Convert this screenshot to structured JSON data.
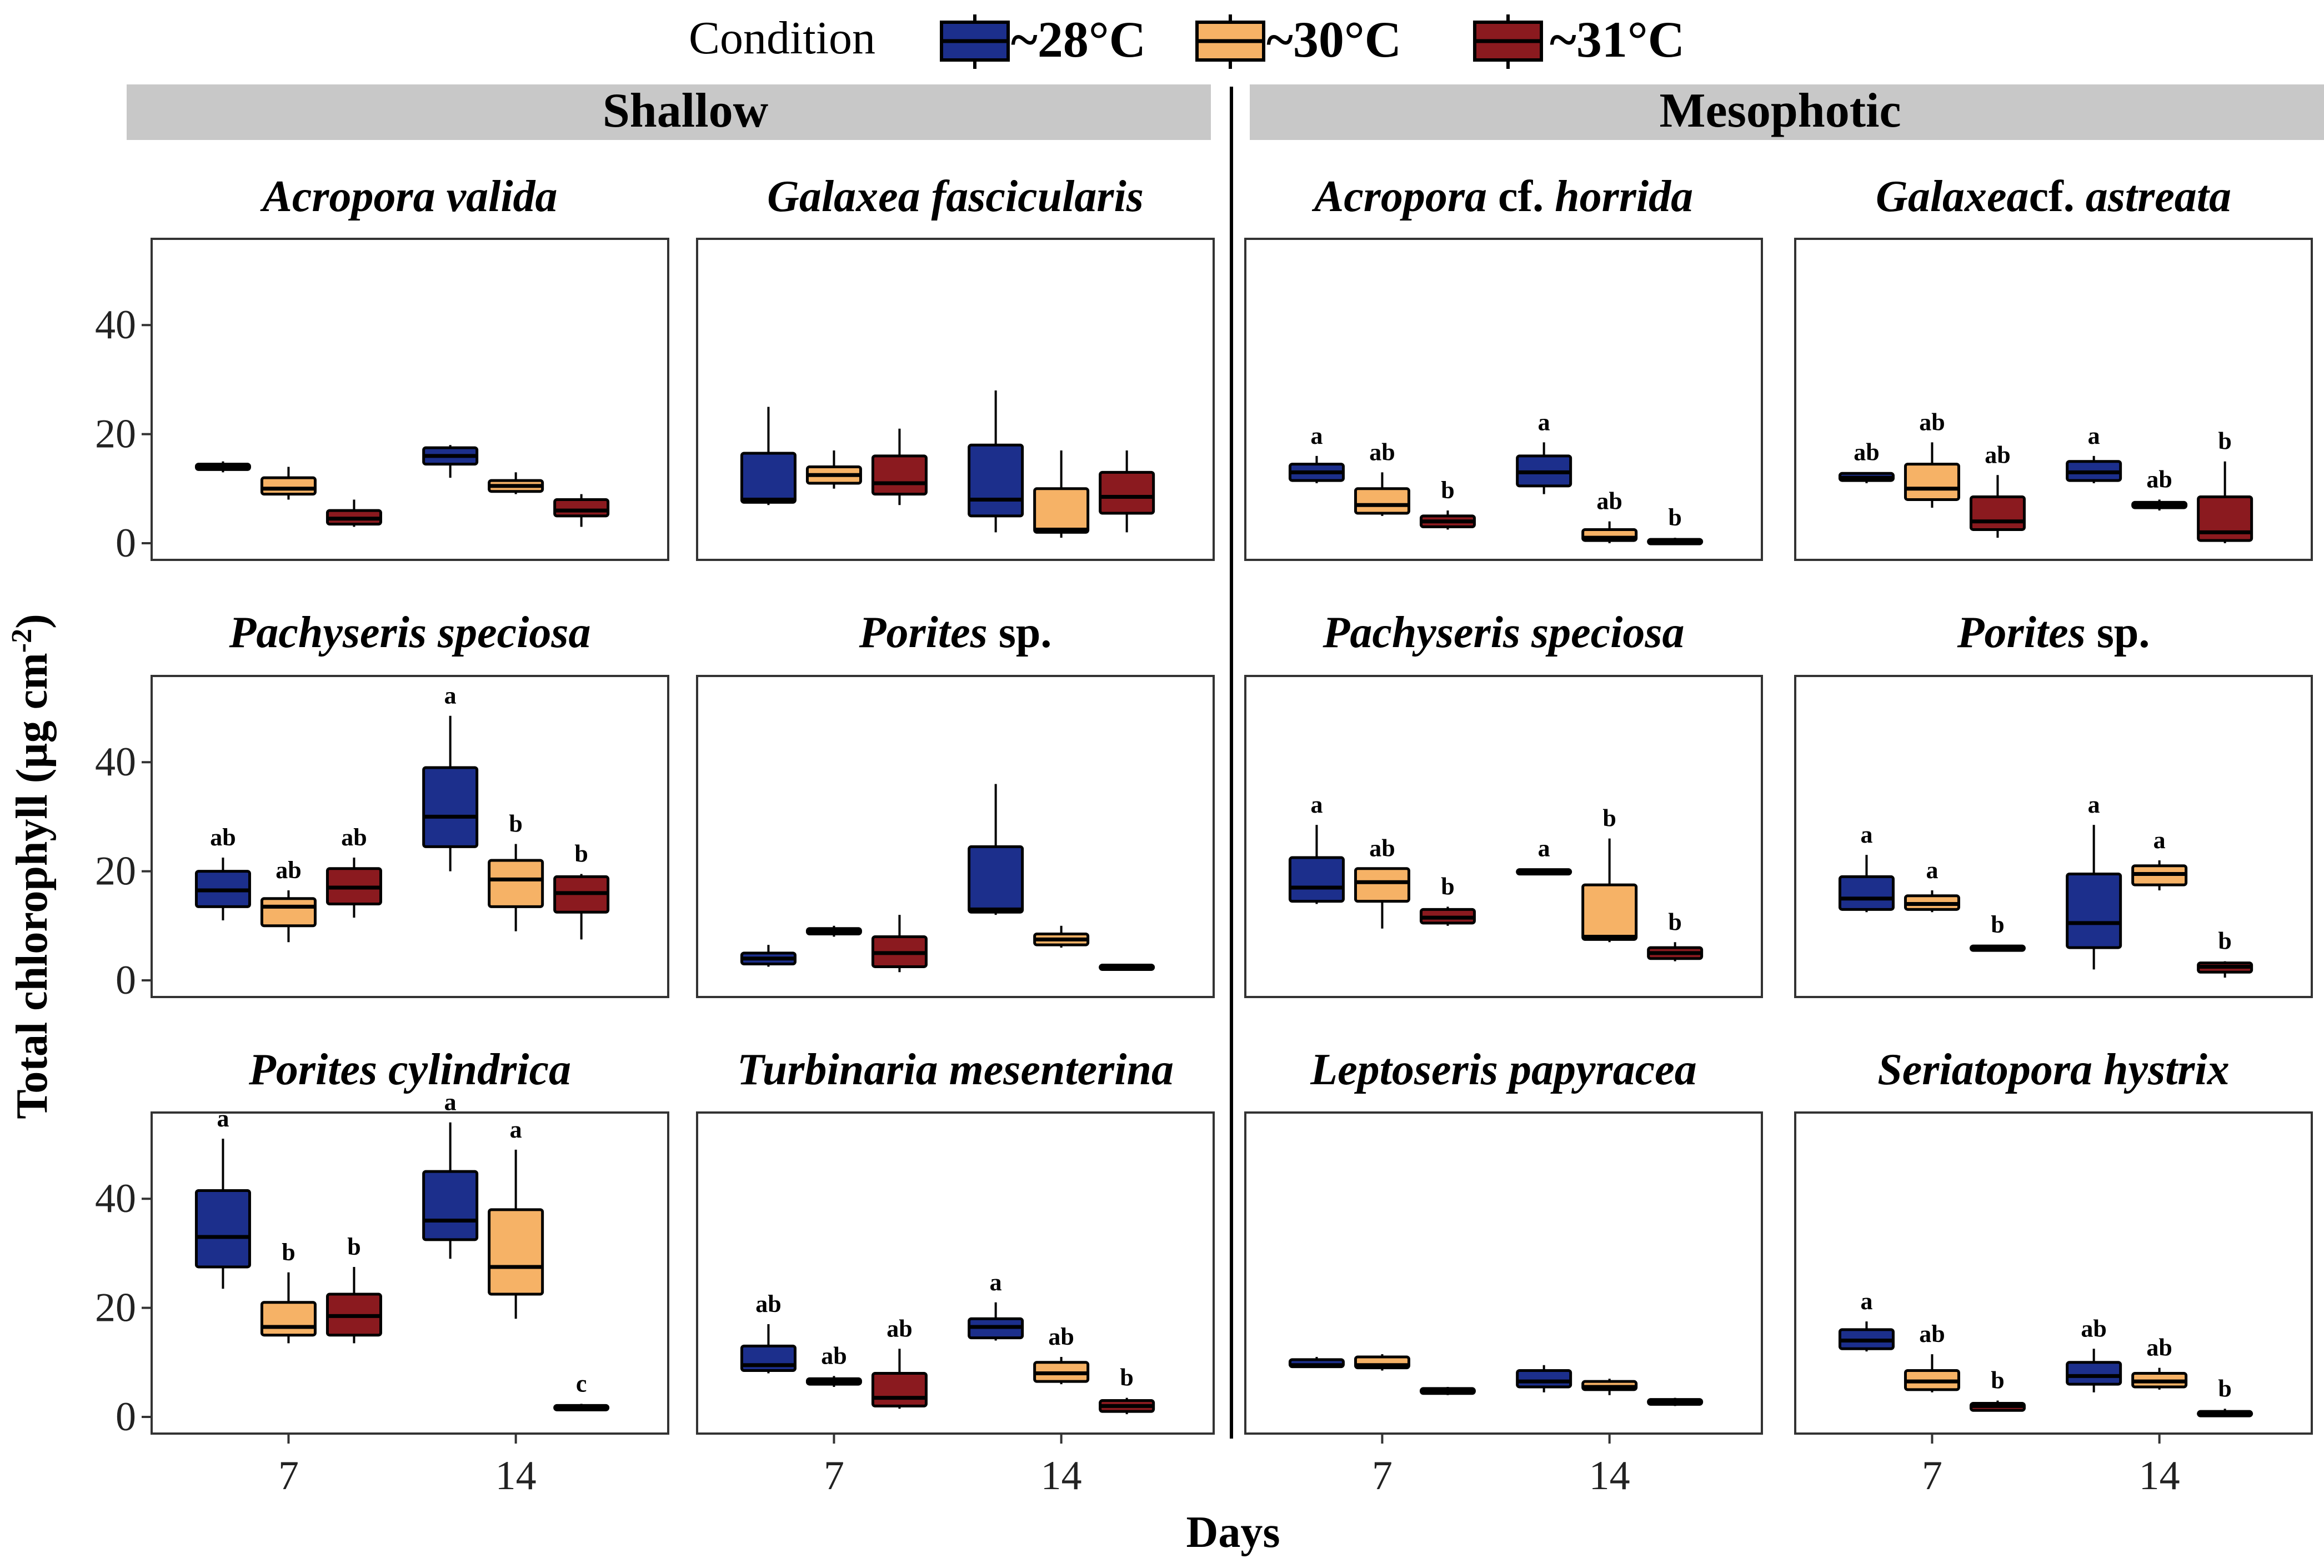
{
  "legend": {
    "title": "Condition",
    "entries": [
      {
        "key": "c28",
        "label": "~28°C",
        "color": "#1c2f8c"
      },
      {
        "key": "c30",
        "label": "~30°C",
        "color": "#f6b266"
      },
      {
        "key": "c31",
        "label": "~31°C",
        "color": "#8b1a1f"
      }
    ]
  },
  "groups": [
    {
      "label": "Shallow"
    },
    {
      "label": "Mesophotic"
    }
  ],
  "axes": {
    "ylabel": "Total chlorophyll (µg cm",
    "ylabel_sup": "-2",
    "ylabel_close": ")",
    "xlabel": "Days",
    "y_ticks": [
      "0",
      "20",
      "40"
    ],
    "x_ticks": [
      "7",
      "14"
    ]
  },
  "chart_data": {
    "type": "box",
    "x_categories": [
      "7",
      "14"
    ],
    "y_range": [
      0,
      52
    ],
    "series_order": [
      "~28°C",
      "~30°C",
      "~31°C"
    ],
    "panels": [
      {
        "group": "Shallow",
        "row": 0,
        "col": 0,
        "title": [
          {
            "t": "Acropora valida",
            "i": true
          }
        ],
        "days": [
          [
            {
              "min": 13,
              "q1": 13.5,
              "med": 14,
              "q3": 14.5,
              "max": 15,
              "sig": ""
            },
            {
              "min": 8,
              "q1": 9,
              "med": 10,
              "q3": 12,
              "max": 14,
              "sig": ""
            },
            {
              "min": 3,
              "q1": 3.5,
              "med": 4.5,
              "q3": 6,
              "max": 8,
              "sig": ""
            }
          ],
          [
            {
              "min": 12,
              "q1": 14.5,
              "med": 16,
              "q3": 17.5,
              "max": 18,
              "sig": ""
            },
            {
              "min": 9,
              "q1": 9.5,
              "med": 10.5,
              "q3": 11.5,
              "max": 13,
              "sig": ""
            },
            {
              "min": 3,
              "q1": 5,
              "med": 6,
              "q3": 8,
              "max": 9,
              "sig": ""
            }
          ]
        ]
      },
      {
        "group": "Shallow",
        "row": 0,
        "col": 1,
        "title": [
          {
            "t": "Galaxea fascicularis",
            "i": true
          }
        ],
        "days": [
          [
            {
              "min": 7,
              "q1": 7.5,
              "med": 8,
              "q3": 16.5,
              "max": 25,
              "sig": ""
            },
            {
              "min": 10,
              "q1": 11,
              "med": 12.5,
              "q3": 14,
              "max": 17,
              "sig": ""
            },
            {
              "min": 7,
              "q1": 9,
              "med": 11,
              "q3": 16,
              "max": 21,
              "sig": ""
            }
          ],
          [
            {
              "min": 2,
              "q1": 5,
              "med": 8,
              "q3": 18,
              "max": 28,
              "sig": ""
            },
            {
              "min": 1,
              "q1": 2,
              "med": 2.5,
              "q3": 10,
              "max": 17,
              "sig": ""
            },
            {
              "min": 2,
              "q1": 5.5,
              "med": 8.5,
              "q3": 13,
              "max": 17,
              "sig": ""
            }
          ]
        ]
      },
      {
        "group": "Mesophotic",
        "row": 0,
        "col": 2,
        "title": [
          {
            "t": "Acropora",
            "i": true
          },
          {
            "t": " cf. ",
            "i": false
          },
          {
            "t": "horrida",
            "i": true
          }
        ],
        "days": [
          [
            {
              "min": 11,
              "q1": 11.5,
              "med": 13,
              "q3": 14.5,
              "max": 16,
              "sig": "a"
            },
            {
              "min": 5,
              "q1": 5.5,
              "med": 7,
              "q3": 10,
              "max": 13,
              "sig": "ab"
            },
            {
              "min": 2.5,
              "q1": 3,
              "med": 4,
              "q3": 5,
              "max": 6,
              "sig": "b"
            }
          ],
          [
            {
              "min": 9,
              "q1": 10.5,
              "med": 13,
              "q3": 16,
              "max": 18.5,
              "sig": "a"
            },
            {
              "min": 0,
              "q1": 0.5,
              "med": 1,
              "q3": 2.5,
              "max": 4,
              "sig": "ab"
            },
            {
              "min": 0,
              "q1": 0.2,
              "med": 0.4,
              "q3": 0.7,
              "max": 1,
              "sig": "b"
            }
          ]
        ]
      },
      {
        "group": "Mesophotic",
        "row": 0,
        "col": 3,
        "title": [
          {
            "t": "Galaxea",
            "i": true
          },
          {
            "t": "cf. ",
            "i": false
          },
          {
            "t": "astreata",
            "i": true
          }
        ],
        "days": [
          [
            {
              "min": 11,
              "q1": 11.5,
              "med": 12,
              "q3": 12.8,
              "max": 13,
              "sig": "ab"
            },
            {
              "min": 6.5,
              "q1": 8,
              "med": 10,
              "q3": 14.5,
              "max": 18.5,
              "sig": "ab"
            },
            {
              "min": 1,
              "q1": 2.5,
              "med": 4,
              "q3": 8.5,
              "max": 12.5,
              "sig": "ab"
            }
          ],
          [
            {
              "min": 11,
              "q1": 11.5,
              "med": 13,
              "q3": 15,
              "max": 16,
              "sig": "a"
            },
            {
              "min": 6,
              "q1": 6.5,
              "med": 7,
              "q3": 7.5,
              "max": 8,
              "sig": "ab"
            },
            {
              "min": 0,
              "q1": 0.5,
              "med": 2,
              "q3": 8.5,
              "max": 15,
              "sig": "b"
            }
          ]
        ]
      },
      {
        "group": "Shallow",
        "row": 1,
        "col": 0,
        "title": [
          {
            "t": "Pachyseris speciosa",
            "i": true
          }
        ],
        "days": [
          [
            {
              "min": 11,
              "q1": 13.5,
              "med": 16.5,
              "q3": 20,
              "max": 22.5,
              "sig": "ab"
            },
            {
              "min": 7,
              "q1": 10,
              "med": 13.5,
              "q3": 15,
              "max": 16.5,
              "sig": "ab"
            },
            {
              "min": 11.5,
              "q1": 14,
              "med": 17,
              "q3": 20.5,
              "max": 22.5,
              "sig": "ab"
            }
          ],
          [
            {
              "min": 20,
              "q1": 24.5,
              "med": 30,
              "q3": 39,
              "max": 48.5,
              "sig": "a"
            },
            {
              "min": 9,
              "q1": 13.5,
              "med": 18.5,
              "q3": 22,
              "max": 25,
              "sig": "b"
            },
            {
              "min": 7.5,
              "q1": 12.5,
              "med": 16,
              "q3": 19,
              "max": 19.5,
              "sig": "b"
            }
          ]
        ]
      },
      {
        "group": "Shallow",
        "row": 1,
        "col": 1,
        "title": [
          {
            "t": "Porites",
            "i": true
          },
          {
            "t": " sp.",
            "i": false
          }
        ],
        "days": [
          [
            {
              "min": 2.5,
              "q1": 3,
              "med": 4,
              "q3": 5,
              "max": 6.5,
              "sig": ""
            },
            {
              "min": 8,
              "q1": 8.5,
              "med": 9,
              "q3": 9.5,
              "max": 10,
              "sig": ""
            },
            {
              "min": 1.5,
              "q1": 2.5,
              "med": 5,
              "q3": 8,
              "max": 12,
              "sig": ""
            }
          ],
          [
            {
              "min": 12,
              "q1": 12.5,
              "med": 13,
              "q3": 24.5,
              "max": 36,
              "sig": ""
            },
            {
              "min": 6,
              "q1": 6.5,
              "med": 7.5,
              "q3": 8.5,
              "max": 10,
              "sig": ""
            },
            {
              "min": 2,
              "q1": 2.2,
              "med": 2.5,
              "q3": 2.8,
              "max": 3,
              "sig": ""
            }
          ]
        ]
      },
      {
        "group": "Mesophotic",
        "row": 1,
        "col": 2,
        "title": [
          {
            "t": "Pachyseris speciosa",
            "i": true
          }
        ],
        "days": [
          [
            {
              "min": 14,
              "q1": 14.5,
              "med": 17,
              "q3": 22.5,
              "max": 28.5,
              "sig": "a"
            },
            {
              "min": 9.5,
              "q1": 14.5,
              "med": 18,
              "q3": 20.5,
              "max": 20.5,
              "sig": "ab"
            },
            {
              "min": 10,
              "q1": 10.5,
              "med": 11.5,
              "q3": 13,
              "max": 13.5,
              "sig": "b"
            }
          ],
          [
            {
              "min": 19.5,
              "q1": 19.7,
              "med": 20,
              "q3": 20.3,
              "max": 20.5,
              "sig": "a"
            },
            {
              "min": 7,
              "q1": 7.5,
              "med": 8,
              "q3": 17.5,
              "max": 26,
              "sig": "b"
            },
            {
              "min": 3.5,
              "q1": 4,
              "med": 5,
              "q3": 6,
              "max": 7,
              "sig": "b"
            }
          ]
        ]
      },
      {
        "group": "Mesophotic",
        "row": 1,
        "col": 3,
        "title": [
          {
            "t": "Porites",
            "i": true
          },
          {
            "t": " sp.",
            "i": false
          }
        ],
        "days": [
          [
            {
              "min": 12.5,
              "q1": 13,
              "med": 15,
              "q3": 19,
              "max": 23,
              "sig": "a"
            },
            {
              "min": 12.5,
              "q1": 13,
              "med": 14,
              "q3": 15.5,
              "max": 16.5,
              "sig": "a"
            },
            {
              "min": 5.5,
              "q1": 5.8,
              "med": 6,
              "q3": 6.3,
              "max": 6.5,
              "sig": "b"
            }
          ],
          [
            {
              "min": 2,
              "q1": 6,
              "med": 10.5,
              "q3": 19.5,
              "max": 28.5,
              "sig": "a"
            },
            {
              "min": 16.5,
              "q1": 17.5,
              "med": 19.5,
              "q3": 21,
              "max": 22,
              "sig": "a"
            },
            {
              "min": 0.5,
              "q1": 1.5,
              "med": 2.5,
              "q3": 3.2,
              "max": 3.5,
              "sig": "b"
            }
          ]
        ]
      },
      {
        "group": "Shallow",
        "row": 2,
        "col": 0,
        "title": [
          {
            "t": "Porites cylindrica",
            "i": true
          }
        ],
        "days": [
          [
            {
              "min": 23.5,
              "q1": 27.5,
              "med": 33,
              "q3": 41.5,
              "max": 51,
              "sig": "a"
            },
            {
              "min": 13.5,
              "q1": 15,
              "med": 16.5,
              "q3": 21,
              "max": 26.5,
              "sig": "b"
            },
            {
              "min": 13.5,
              "q1": 15,
              "med": 18.5,
              "q3": 22.5,
              "max": 27.5,
              "sig": "b"
            }
          ],
          [
            {
              "min": 29,
              "q1": 32.5,
              "med": 36,
              "q3": 45,
              "max": 54,
              "sig": "a"
            },
            {
              "min": 18,
              "q1": 22.5,
              "med": 27.5,
              "q3": 38,
              "max": 49,
              "sig": "a"
            },
            {
              "min": 1.2,
              "q1": 1.5,
              "med": 1.8,
              "q3": 2.1,
              "max": 2.4,
              "sig": "c"
            }
          ]
        ]
      },
      {
        "group": "Shallow",
        "row": 2,
        "col": 1,
        "title": [
          {
            "t": "Turbinaria mesenterina",
            "i": true
          }
        ],
        "days": [
          [
            {
              "min": 8,
              "q1": 8.5,
              "med": 9.5,
              "q3": 13,
              "max": 17,
              "sig": "ab"
            },
            {
              "min": 5.5,
              "q1": 6,
              "med": 6.5,
              "q3": 7,
              "max": 7.5,
              "sig": "ab"
            },
            {
              "min": 1.5,
              "q1": 2,
              "med": 3.5,
              "q3": 8,
              "max": 12.5,
              "sig": "ab"
            }
          ],
          [
            {
              "min": 14,
              "q1": 14.5,
              "med": 16.5,
              "q3": 18,
              "max": 21,
              "sig": "a"
            },
            {
              "min": 6,
              "q1": 6.5,
              "med": 8,
              "q3": 10,
              "max": 11,
              "sig": "ab"
            },
            {
              "min": 0.5,
              "q1": 1,
              "med": 2,
              "q3": 3,
              "max": 3.5,
              "sig": "b"
            }
          ]
        ]
      },
      {
        "group": "Mesophotic",
        "row": 2,
        "col": 2,
        "title": [
          {
            "t": "Leptoseris papyracea",
            "i": true
          }
        ],
        "days": [
          [
            {
              "min": 9,
              "q1": 9.2,
              "med": 9.5,
              "q3": 10.5,
              "max": 11,
              "sig": ""
            },
            {
              "min": 8.5,
              "q1": 9,
              "med": 9.5,
              "q3": 11,
              "max": 11.5,
              "sig": ""
            },
            {
              "min": 4,
              "q1": 4.3,
              "med": 4.8,
              "q3": 5.2,
              "max": 5.5,
              "sig": ""
            }
          ],
          [
            {
              "min": 4.5,
              "q1": 5.5,
              "med": 6.5,
              "q3": 8.5,
              "max": 9.5,
              "sig": ""
            },
            {
              "min": 4,
              "q1": 5,
              "med": 5.5,
              "q3": 6.5,
              "max": 7,
              "sig": ""
            },
            {
              "min": 2,
              "q1": 2.3,
              "med": 2.8,
              "q3": 3.2,
              "max": 3.5,
              "sig": ""
            }
          ]
        ]
      },
      {
        "group": "Mesophotic",
        "row": 2,
        "col": 3,
        "title": [
          {
            "t": "Seriatopora hystrix",
            "i": true
          }
        ],
        "days": [
          [
            {
              "min": 12,
              "q1": 12.5,
              "med": 14,
              "q3": 16,
              "max": 17.5,
              "sig": "a"
            },
            {
              "min": 4.5,
              "q1": 5,
              "med": 6.5,
              "q3": 8.5,
              "max": 11.5,
              "sig": "ab"
            },
            {
              "min": 1,
              "q1": 1.2,
              "med": 2,
              "q3": 2.5,
              "max": 3,
              "sig": "b"
            }
          ],
          [
            {
              "min": 4.5,
              "q1": 6,
              "med": 7.5,
              "q3": 10,
              "max": 12.5,
              "sig": "ab"
            },
            {
              "min": 5,
              "q1": 5.5,
              "med": 6.5,
              "q3": 8,
              "max": 9,
              "sig": "ab"
            },
            {
              "min": 0,
              "q1": 0.2,
              "med": 0.5,
              "q3": 1,
              "max": 1.5,
              "sig": "b"
            }
          ]
        ]
      }
    ]
  }
}
